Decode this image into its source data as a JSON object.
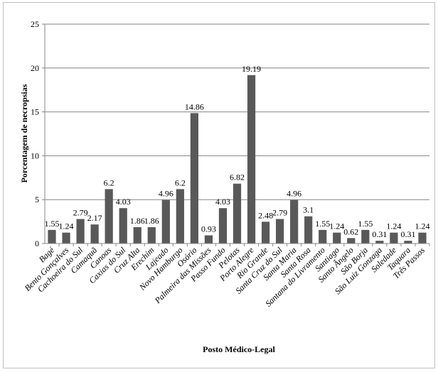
{
  "chart_data": {
    "type": "bar",
    "title": "",
    "xlabel": "Posto Médico-Legal",
    "ylabel": "Porcentagem de necropsias",
    "ylim": [
      0,
      25
    ],
    "yticks": [
      0,
      5,
      10,
      15,
      20,
      25
    ],
    "grid": "horizontal",
    "bar_color": "#595959",
    "categories": [
      "Bagé",
      "Bento Gonçalves",
      "Cachoeira do Sul",
      "Camaquã",
      "Canoas",
      "Caxias do Sul",
      "Cruz Alta",
      "Erechim",
      "Lajeado",
      "Novo Hamburgo",
      "Osório",
      "Palmeira das Missões",
      "Passo Fundo",
      "Pelotas",
      "Porto Alegre",
      "Rio Grande",
      "Santa Cruz do Sul",
      "Santa Maria",
      "Santa Rosa",
      "Santana do Livramento",
      "Santiago",
      "Santo Ângelo",
      "São Borja",
      "São Luiz Gonzaga",
      "Soledade",
      "Taquara",
      "Três Passos"
    ],
    "values": [
      1.55,
      1.24,
      2.79,
      2.17,
      6.2,
      4.03,
      1.86,
      1.86,
      4.96,
      6.2,
      14.86,
      0.93,
      4.03,
      6.82,
      19.19,
      2.48,
      2.79,
      4.96,
      3.1,
      1.55,
      1.24,
      0.62,
      1.55,
      0.31,
      1.24,
      0.31,
      1.24
    ]
  }
}
